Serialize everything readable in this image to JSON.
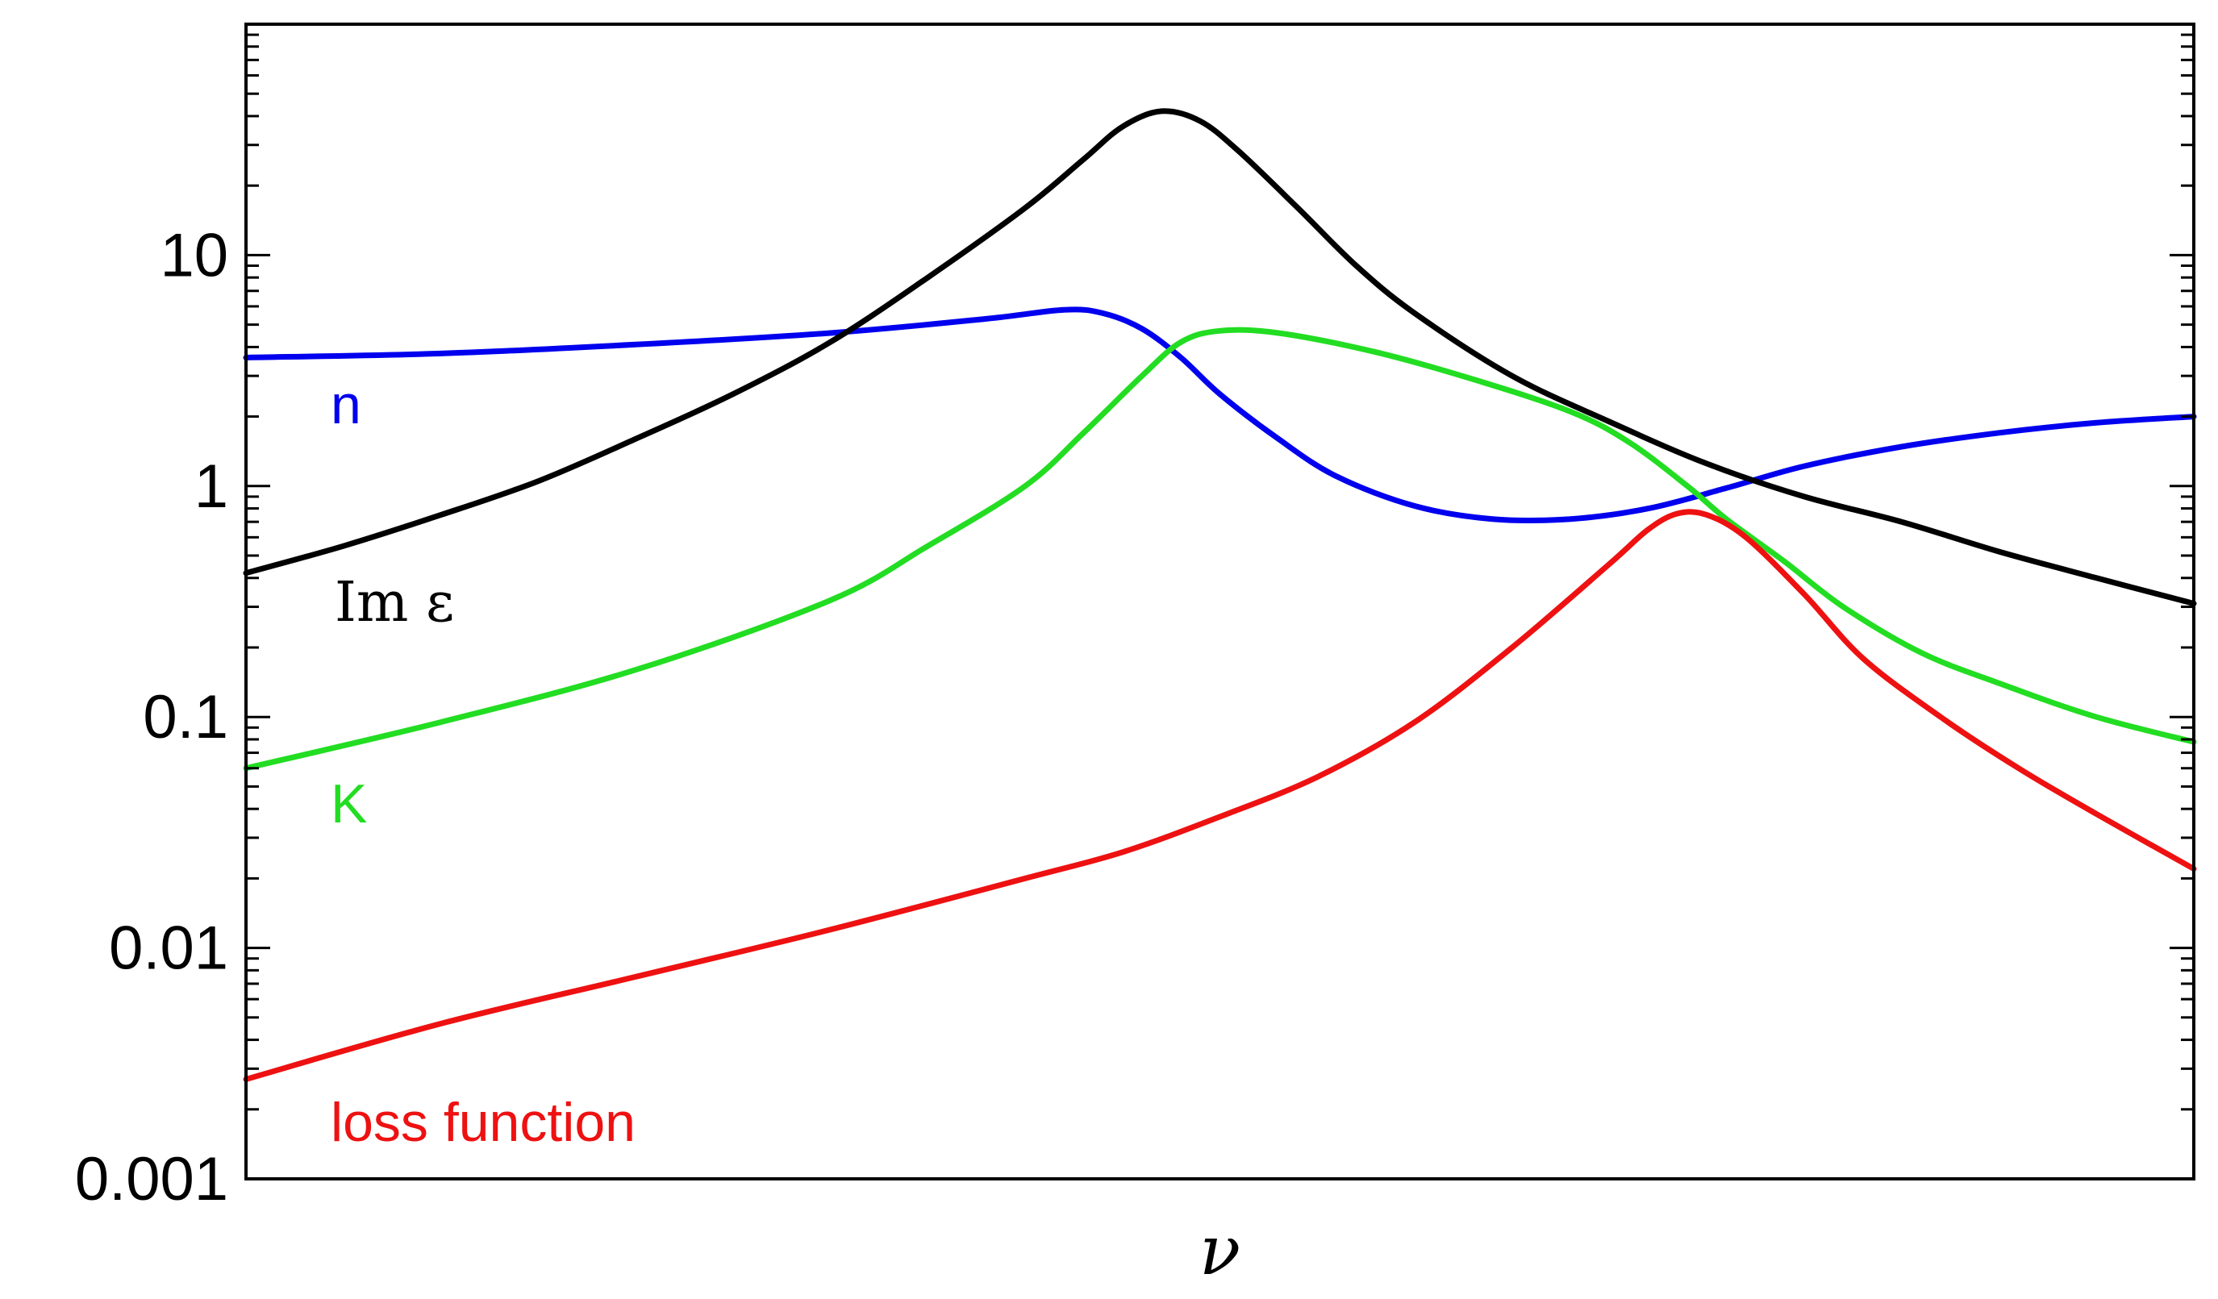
{
  "chart_data": {
    "type": "line",
    "xlabel": "ν",
    "ylabel": "",
    "yscale": "log",
    "xlim": [
      0,
      1
    ],
    "ylim": [
      0.001,
      100
    ],
    "grid": false,
    "legend": "inline labels near left edge",
    "yticks": [
      {
        "value": 0.001,
        "label": "0.001"
      },
      {
        "value": 0.01,
        "label": "0.01"
      },
      {
        "value": 0.1,
        "label": "0.1"
      },
      {
        "value": 1,
        "label": "1"
      },
      {
        "value": 10,
        "label": "10"
      }
    ],
    "series": [
      {
        "name": "n",
        "color": "#0000ee",
        "points": [
          [
            0.0,
            3.6
          ],
          [
            0.1,
            3.75
          ],
          [
            0.2,
            4.1
          ],
          [
            0.3,
            4.6
          ],
          [
            0.38,
            5.3
          ],
          [
            0.42,
            5.8
          ],
          [
            0.44,
            5.6
          ],
          [
            0.46,
            4.8
          ],
          [
            0.48,
            3.6
          ],
          [
            0.5,
            2.5
          ],
          [
            0.53,
            1.6
          ],
          [
            0.56,
            1.1
          ],
          [
            0.6,
            0.82
          ],
          [
            0.64,
            0.72
          ],
          [
            0.68,
            0.72
          ],
          [
            0.72,
            0.8
          ],
          [
            0.76,
            0.98
          ],
          [
            0.8,
            1.22
          ],
          [
            0.85,
            1.48
          ],
          [
            0.9,
            1.7
          ],
          [
            0.95,
            1.88
          ],
          [
            1.0,
            2.0
          ]
        ]
      },
      {
        "name": "Im ε",
        "color": "#000000",
        "points": [
          [
            0.0,
            0.42
          ],
          [
            0.05,
            0.55
          ],
          [
            0.1,
            0.75
          ],
          [
            0.15,
            1.05
          ],
          [
            0.2,
            1.6
          ],
          [
            0.25,
            2.5
          ],
          [
            0.3,
            4.2
          ],
          [
            0.35,
            8.0
          ],
          [
            0.4,
            16.0
          ],
          [
            0.43,
            26.0
          ],
          [
            0.45,
            36.0
          ],
          [
            0.47,
            42.0
          ],
          [
            0.49,
            38.0
          ],
          [
            0.51,
            28.0
          ],
          [
            0.54,
            16.0
          ],
          [
            0.57,
            9.0
          ],
          [
            0.6,
            5.6
          ],
          [
            0.65,
            3.0
          ],
          [
            0.7,
            1.9
          ],
          [
            0.75,
            1.25
          ],
          [
            0.8,
            0.9
          ],
          [
            0.85,
            0.7
          ],
          [
            0.9,
            0.52
          ],
          [
            0.95,
            0.4
          ],
          [
            1.0,
            0.31
          ]
        ]
      },
      {
        "name": "K",
        "color": "#22dd22",
        "points": [
          [
            0.0,
            0.06
          ],
          [
            0.1,
            0.095
          ],
          [
            0.2,
            0.16
          ],
          [
            0.3,
            0.32
          ],
          [
            0.35,
            0.55
          ],
          [
            0.4,
            1.0
          ],
          [
            0.43,
            1.7
          ],
          [
            0.46,
            3.0
          ],
          [
            0.48,
            4.2
          ],
          [
            0.5,
            4.7
          ],
          [
            0.53,
            4.6
          ],
          [
            0.58,
            3.8
          ],
          [
            0.63,
            2.9
          ],
          [
            0.68,
            2.1
          ],
          [
            0.71,
            1.55
          ],
          [
            0.74,
            1.0
          ],
          [
            0.76,
            0.72
          ],
          [
            0.79,
            0.47
          ],
          [
            0.82,
            0.3
          ],
          [
            0.86,
            0.19
          ],
          [
            0.9,
            0.14
          ],
          [
            0.95,
            0.1
          ],
          [
            1.0,
            0.078
          ]
        ]
      },
      {
        "name": "loss function",
        "color": "#ee1111",
        "points": [
          [
            0.0,
            0.0027
          ],
          [
            0.1,
            0.0047
          ],
          [
            0.2,
            0.0075
          ],
          [
            0.3,
            0.012
          ],
          [
            0.4,
            0.02
          ],
          [
            0.45,
            0.026
          ],
          [
            0.5,
            0.037
          ],
          [
            0.55,
            0.055
          ],
          [
            0.6,
            0.095
          ],
          [
            0.65,
            0.2
          ],
          [
            0.7,
            0.46
          ],
          [
            0.72,
            0.65
          ],
          [
            0.735,
            0.76
          ],
          [
            0.75,
            0.75
          ],
          [
            0.77,
            0.6
          ],
          [
            0.8,
            0.34
          ],
          [
            0.83,
            0.18
          ],
          [
            0.87,
            0.1
          ],
          [
            0.91,
            0.06
          ],
          [
            0.95,
            0.038
          ],
          [
            1.0,
            0.022
          ]
        ]
      }
    ],
    "annotations": [
      {
        "text": "n",
        "series": 0
      },
      {
        "text": "Im ε",
        "series": 1
      },
      {
        "text": "K",
        "series": 2
      },
      {
        "text": "loss function",
        "series": 3
      }
    ]
  }
}
